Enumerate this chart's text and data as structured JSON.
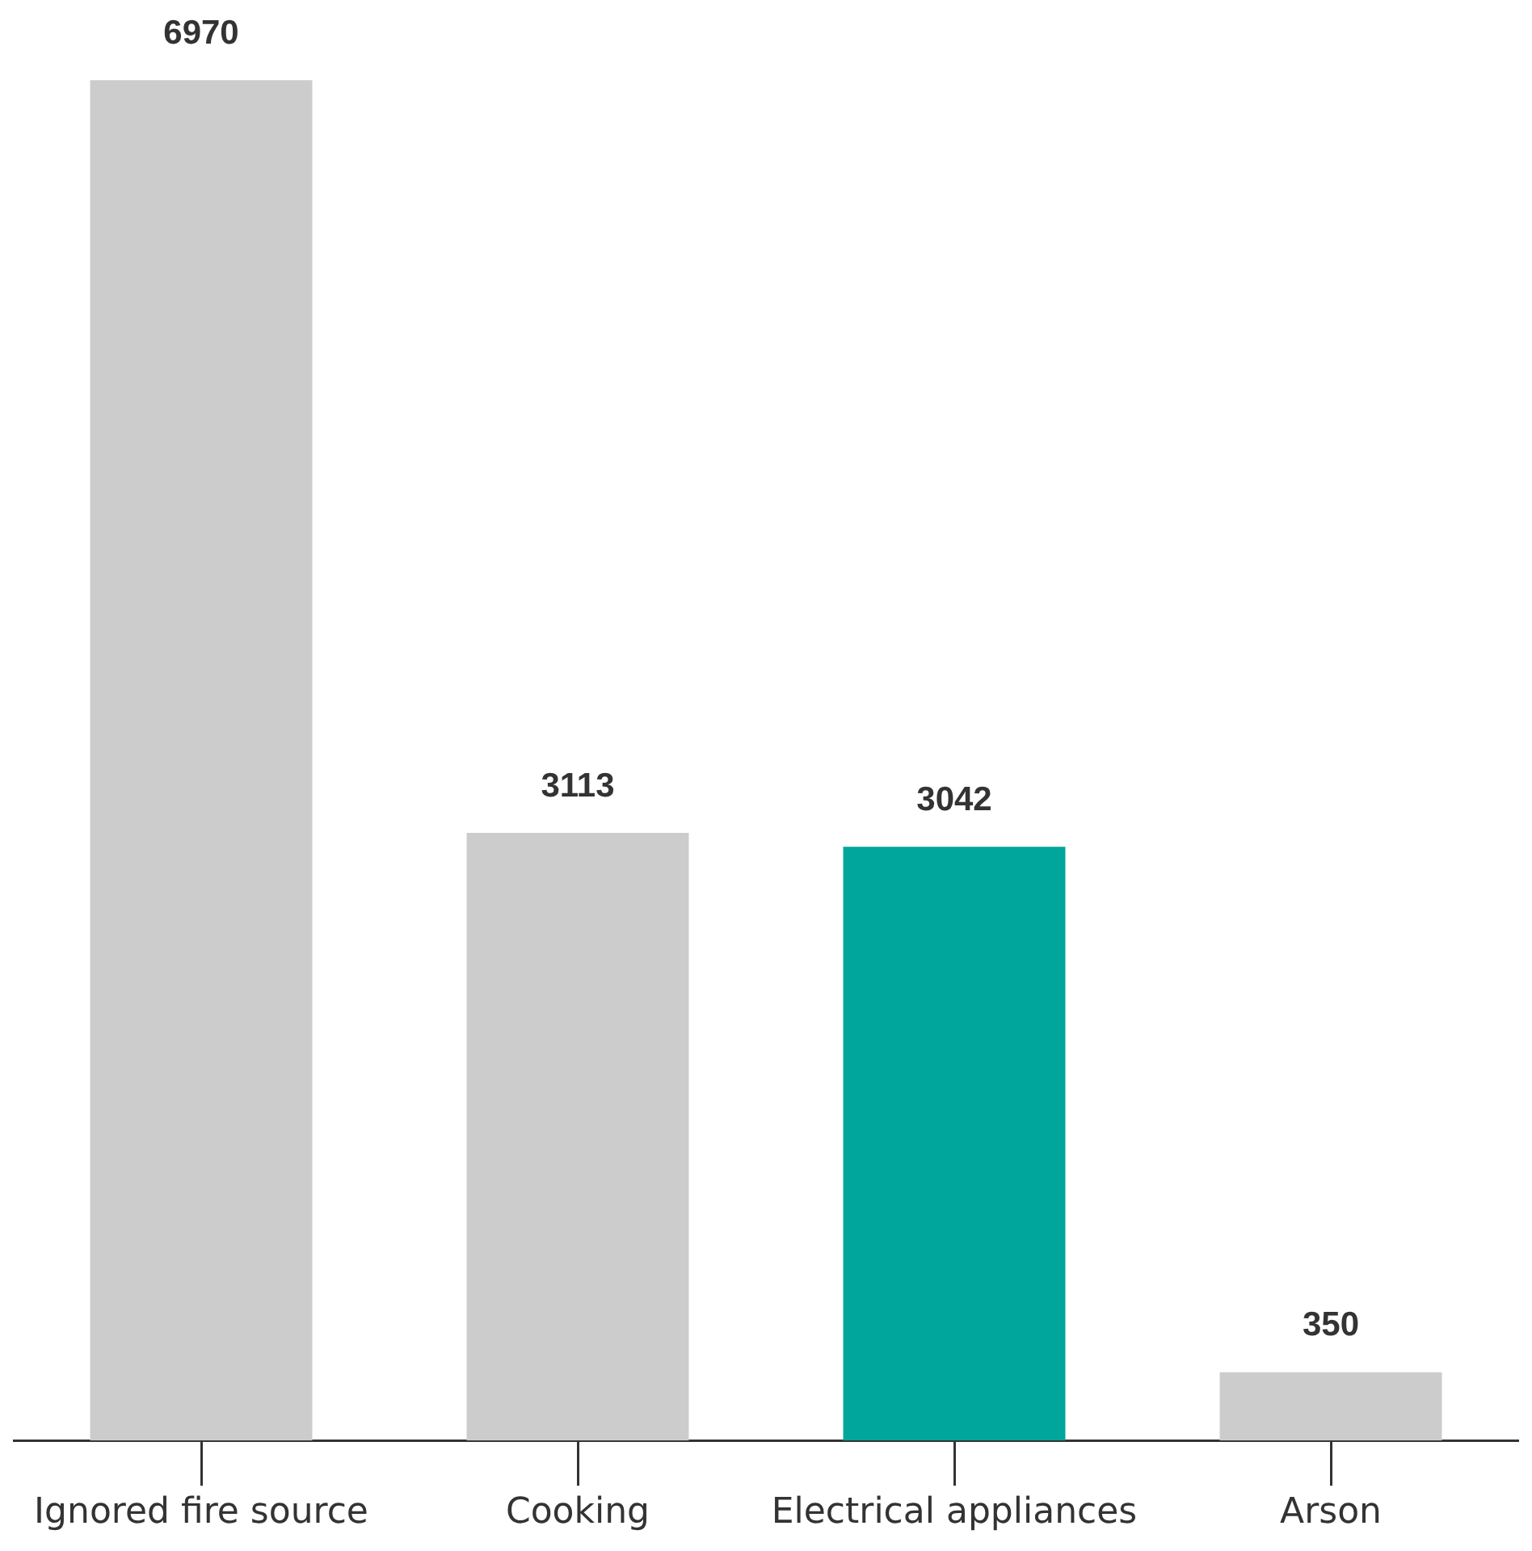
{
  "chart_data": {
    "type": "bar",
    "categories": [
      "Ignored fire source",
      "Cooking",
      "Electrical appliances",
      "Arson"
    ],
    "values": [
      6970,
      3113,
      3042,
      350
    ],
    "colors": [
      "#cccccc",
      "#cccccc",
      "#00a59b",
      "#cccccc"
    ],
    "data_labels": true,
    "grid": false,
    "legend": false
  }
}
